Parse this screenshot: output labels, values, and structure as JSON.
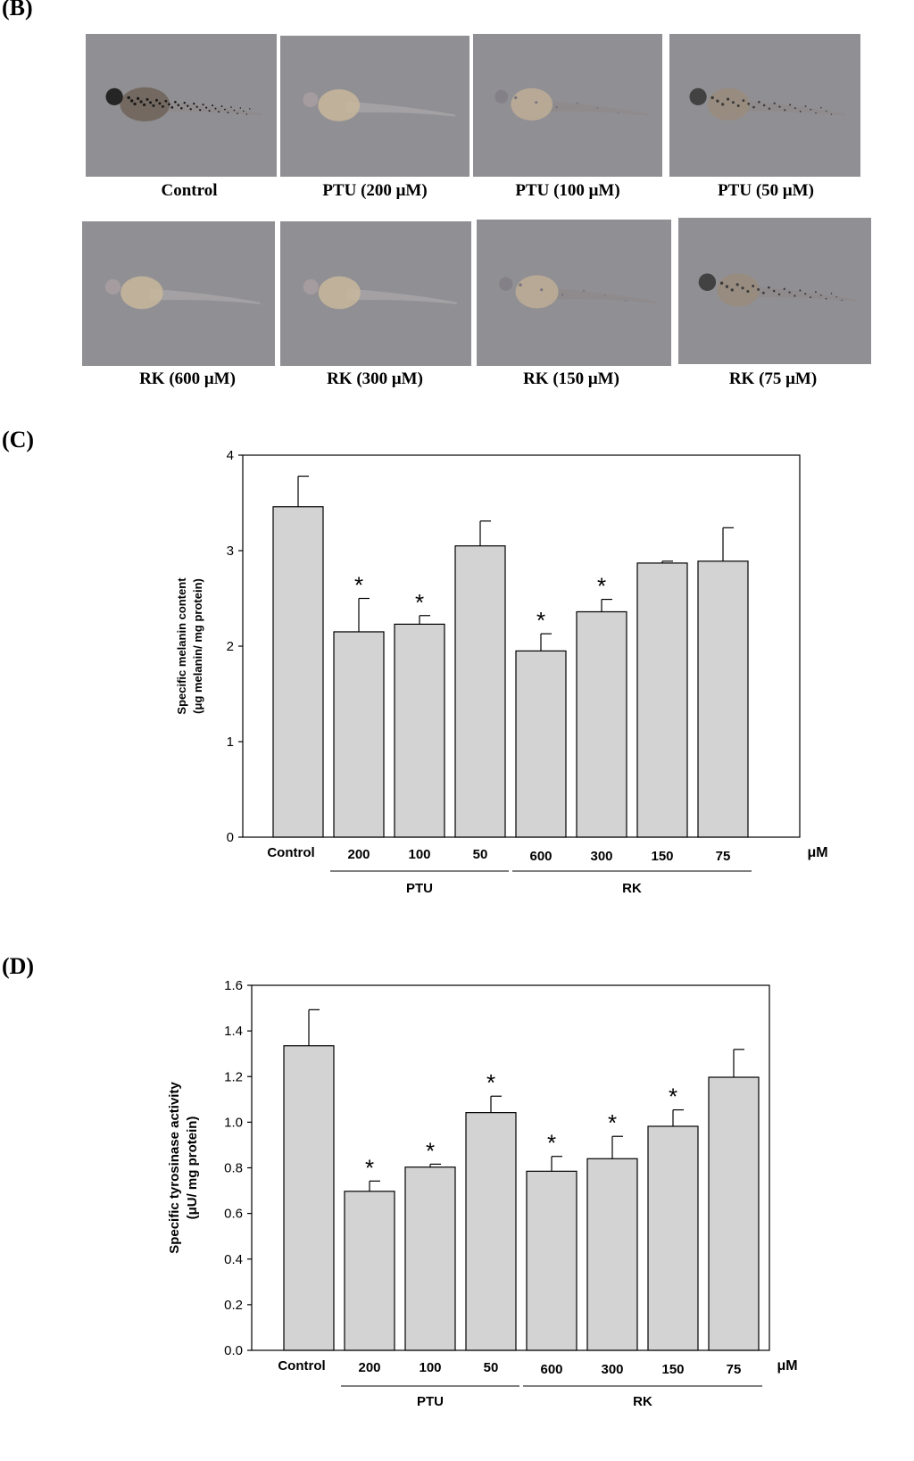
{
  "panel_b": {
    "label": "(B)",
    "photos": [
      {
        "caption": "Control",
        "pigment": "high"
      },
      {
        "caption": "PTU (200 μM)",
        "pigment": "none"
      },
      {
        "caption": "PTU (100 μM)",
        "pigment": "low"
      },
      {
        "caption": "PTU (50 μM)",
        "pigment": "medium"
      },
      {
        "caption": "RK (600 μM)",
        "pigment": "none"
      },
      {
        "caption": "RK (300 μM)",
        "pigment": "none"
      },
      {
        "caption": "RK (150 μM)",
        "pigment": "low"
      },
      {
        "caption": "RK (75 μM)",
        "pigment": "medium"
      }
    ]
  },
  "chart_data": [
    {
      "panel": "(C)",
      "type": "bar",
      "title": "",
      "ylabel_line1": "Specific melanin content",
      "ylabel_line2": "(μg melanin/ mg protein)",
      "xunit": "μM",
      "categories": [
        "Control",
        "200",
        "100",
        "50",
        "600",
        "300",
        "150",
        "75"
      ],
      "values": [
        3.46,
        2.15,
        2.23,
        3.05,
        1.95,
        2.36,
        2.87,
        2.89
      ],
      "errors": [
        0.32,
        0.35,
        0.09,
        0.26,
        0.18,
        0.13,
        0.02,
        0.35
      ],
      "significant": [
        false,
        true,
        true,
        false,
        true,
        true,
        false,
        false
      ],
      "significance_marker": "*",
      "groups": [
        {
          "label": "PTU",
          "from": 1,
          "to": 3
        },
        {
          "label": "RK",
          "from": 4,
          "to": 7
        }
      ],
      "ylim": [
        0,
        4
      ],
      "yticks": [
        "0",
        "1",
        "2",
        "3",
        "4"
      ],
      "bar_color": "#d3d3d3",
      "grid": false
    },
    {
      "panel": "(D)",
      "type": "bar",
      "title": "",
      "ylabel_line1": "Specific tyrosinase activity",
      "ylabel_line2": "(μU/ mg protein)",
      "xunit": "μM",
      "categories": [
        "Control",
        "200",
        "100",
        "50",
        "600",
        "300",
        "150",
        "75"
      ],
      "values": [
        1.335,
        0.697,
        0.803,
        1.042,
        0.785,
        0.84,
        0.982,
        1.197
      ],
      "errors": [
        0.158,
        0.045,
        0.013,
        0.072,
        0.065,
        0.098,
        0.072,
        0.122
      ],
      "significant": [
        false,
        true,
        true,
        true,
        true,
        true,
        true,
        false
      ],
      "significance_marker": "*",
      "groups": [
        {
          "label": "PTU",
          "from": 1,
          "to": 3
        },
        {
          "label": "RK",
          "from": 4,
          "to": 7
        }
      ],
      "ylim": [
        0,
        1.6
      ],
      "yticks": [
        "0.0",
        "0.2",
        "0.4",
        "0.6",
        "0.8",
        "1.0",
        "1.2",
        "1.4",
        "1.6"
      ],
      "bar_color": "#d3d3d3",
      "grid": false
    }
  ]
}
